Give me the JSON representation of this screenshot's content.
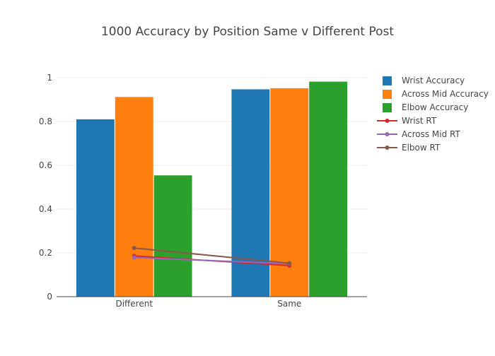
{
  "chart_data": {
    "type": "bar",
    "title": "1000 Accuracy by Position Same v Different Post",
    "categories": [
      "Different",
      "Same"
    ],
    "ylim": [
      0,
      1
    ],
    "yticks": [
      0,
      0.2,
      0.4,
      0.6,
      0.8,
      1
    ],
    "ytick_labels": [
      "0",
      "0.2",
      "0.4",
      "0.6",
      "0.8",
      "1"
    ],
    "grid": true,
    "legend_position": "right",
    "series": [
      {
        "name": "Wrist Accuracy",
        "kind": "bar",
        "color": "#1f77b4",
        "values": [
          0.81,
          0.947
        ]
      },
      {
        "name": "Across Mid Accuracy",
        "kind": "bar",
        "color": "#ff7f0e",
        "values": [
          0.912,
          0.952
        ]
      },
      {
        "name": "Elbow Accuracy",
        "kind": "bar",
        "color": "#2ca02c",
        "values": [
          0.554,
          0.982
        ]
      },
      {
        "name": "Wrist RT",
        "kind": "line",
        "color": "#d62728",
        "values": [
          0.186,
          0.142
        ]
      },
      {
        "name": "Across Mid RT",
        "kind": "line",
        "color": "#9467bd",
        "values": [
          0.179,
          0.15
        ]
      },
      {
        "name": "Elbow RT",
        "kind": "line",
        "color": "#8c564b",
        "values": [
          0.222,
          0.153
        ]
      }
    ]
  }
}
